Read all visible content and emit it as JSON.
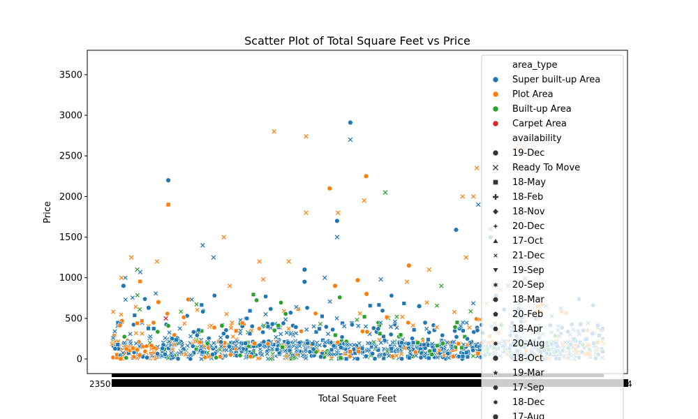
{
  "chart_data": {
    "type": "scatter",
    "title": "Scatter Plot of Total Square Feet vs Price",
    "xlabel": "Total Square Feet",
    "ylabel": "Price",
    "ylim": [
      -180,
      3800
    ],
    "y_ticks": [
      0,
      500,
      1000,
      1500,
      2000,
      2500,
      3000,
      3500
    ],
    "x_tick_labels_visible": [
      "2350",
      "4"
    ],
    "x_axis_note": "categorical x axis; thousands of overlapping tick labels",
    "grid": false,
    "legend_placement": "right (extends below plot)",
    "hue": {
      "title": "area_type",
      "categories": [
        {
          "name": "Super built-up  Area",
          "color": "#1f77b4"
        },
        {
          "name": "Plot  Area",
          "color": "#ff7f0e"
        },
        {
          "name": "Built-up  Area",
          "color": "#2ca02c"
        },
        {
          "name": "Carpet  Area",
          "color": "#d62728"
        }
      ]
    },
    "style": {
      "title": "availability",
      "categories": [
        {
          "name": "19-Dec",
          "marker": "circle"
        },
        {
          "name": "Ready To Move",
          "marker": "x"
        },
        {
          "name": "18-May",
          "marker": "square"
        },
        {
          "name": "18-Feb",
          "marker": "plus"
        },
        {
          "name": "18-Nov",
          "marker": "diamond"
        },
        {
          "name": "20-Dec",
          "marker": "star4"
        },
        {
          "name": "17-Oct",
          "marker": "triangle-up"
        },
        {
          "name": "21-Dec",
          "marker": "x-small"
        },
        {
          "name": "19-Sep",
          "marker": "triangle-down"
        },
        {
          "name": "20-Sep",
          "marker": "star6"
        },
        {
          "name": "18-Mar",
          "marker": "octagon"
        },
        {
          "name": "20-Feb",
          "marker": "pentagon"
        },
        {
          "name": "18-Apr",
          "marker": "hexagon"
        },
        {
          "name": "20-Aug",
          "marker": "star8"
        },
        {
          "name": "18-Oct",
          "marker": "circle"
        },
        {
          "name": "19-Mar",
          "marker": "star5"
        },
        {
          "name": "17-Sep",
          "marker": "hexagon"
        },
        {
          "name": "18-Dec",
          "marker": "star8"
        },
        {
          "name": "17-Aug",
          "marker": "circle"
        }
      ]
    },
    "points": [
      {
        "x": 115,
        "y": 2200,
        "area": "Super built-up  Area",
        "avail": "19-Dec"
      },
      {
        "x": 115,
        "y": 1900,
        "area": "Plot  Area",
        "avail": "18-May"
      },
      {
        "x": 330,
        "y": 2800,
        "area": "Plot  Area",
        "avail": "Ready To Move"
      },
      {
        "x": 395,
        "y": 2740,
        "area": "Plot  Area",
        "avail": "Ready To Move"
      },
      {
        "x": 485,
        "y": 2910,
        "area": "Super built-up  Area",
        "avail": "19-Dec"
      },
      {
        "x": 485,
        "y": 2700,
        "area": "Super built-up  Area",
        "avail": "Ready To Move"
      },
      {
        "x": 443,
        "y": 2100,
        "area": "Plot  Area",
        "avail": "19-Dec"
      },
      {
        "x": 517,
        "y": 2250,
        "area": "Plot  Area",
        "avail": "19-Dec"
      },
      {
        "x": 513,
        "y": 1950,
        "area": "Plot  Area",
        "avail": "Ready To Move"
      },
      {
        "x": 556,
        "y": 2050,
        "area": "Built-up  Area",
        "avail": "Ready To Move"
      },
      {
        "x": 395,
        "y": 1800,
        "area": "Plot  Area",
        "avail": "Ready To Move"
      },
      {
        "x": 460,
        "y": 1800,
        "area": "Plot  Area",
        "avail": "Ready To Move"
      },
      {
        "x": 458,
        "y": 1700,
        "area": "Super built-up  Area",
        "avail": "19-Dec"
      },
      {
        "x": 458,
        "y": 1500,
        "area": "Super built-up  Area",
        "avail": "Ready To Move"
      },
      {
        "x": 228,
        "y": 1500,
        "area": "Plot  Area",
        "avail": "Ready To Move"
      },
      {
        "x": 185,
        "y": 1400,
        "area": "Super built-up  Area",
        "avail": "Ready To Move"
      },
      {
        "x": 207,
        "y": 1250,
        "area": "Super built-up  Area",
        "avail": "Ready To Move"
      },
      {
        "x": 40,
        "y": 1250,
        "area": "Plot  Area",
        "avail": "Ready To Move"
      },
      {
        "x": 92,
        "y": 1200,
        "area": "Plot  Area",
        "avail": "Ready To Move"
      },
      {
        "x": 300,
        "y": 1200,
        "area": "Plot  Area",
        "avail": "Ready To Move"
      },
      {
        "x": 360,
        "y": 1200,
        "area": "Plot  Area",
        "avail": "Ready To Move"
      },
      {
        "x": 392,
        "y": 1100,
        "area": "Super built-up  Area",
        "avail": "19-Dec"
      },
      {
        "x": 392,
        "y": 950,
        "area": "Super built-up  Area",
        "avail": "19-Dec"
      },
      {
        "x": 604,
        "y": 1150,
        "area": "Plot  Area",
        "avail": "19-Dec"
      },
      {
        "x": 645,
        "y": 1100,
        "area": "Plot  Area",
        "avail": "Ready To Move"
      },
      {
        "x": 700,
        "y": 1590,
        "area": "Super built-up  Area",
        "avail": "19-Dec"
      },
      {
        "x": 770,
        "y": 1500,
        "area": "Super built-up  Area",
        "avail": "19-Dec"
      },
      {
        "x": 742,
        "y": 2350,
        "area": "Plot  Area",
        "avail": "Ready To Move"
      },
      {
        "x": 713,
        "y": 2000,
        "area": "Plot  Area",
        "avail": "Ready To Move"
      },
      {
        "x": 735,
        "y": 2000,
        "area": "Plot  Area",
        "avail": "Ready To Move"
      },
      {
        "x": 822,
        "y": 2600,
        "area": "Plot  Area",
        "avail": "Ready To Move"
      },
      {
        "x": 838,
        "y": 2600,
        "area": "Plot  Area",
        "avail": "Ready To Move"
      },
      {
        "x": 833,
        "y": 3600,
        "area": "Plot  Area",
        "avail": "Ready To Move"
      },
      {
        "x": 832,
        "y": 1830,
        "area": "Plot  Area",
        "avail": "Ready To Move"
      },
      {
        "x": 625,
        "y": 650,
        "area": "Super built-up  Area",
        "avail": "19-Dec"
      },
      {
        "x": 75,
        "y": 630,
        "area": "Super built-up  Area",
        "avail": "19-Dec"
      },
      {
        "x": 500,
        "y": 970,
        "area": "Plot  Area",
        "avail": "19-Dec"
      },
      {
        "x": 518,
        "y": 800,
        "area": "Plot  Area",
        "avail": "19-Dec"
      },
      {
        "x": 454,
        "y": 900,
        "area": "Plot  Area",
        "avail": "19-Dec"
      },
      {
        "x": 547,
        "y": 980,
        "area": "Super built-up  Area",
        "avail": "Ready To Move"
      },
      {
        "x": 24,
        "y": 900,
        "area": "Super built-up  Area",
        "avail": "19-Dec"
      },
      {
        "x": 600,
        "y": 950,
        "area": "Plot  Area",
        "avail": "Ready To Move"
      },
      {
        "x": 20,
        "y": 1000,
        "area": "Plot  Area",
        "avail": "Ready To Move"
      },
      {
        "x": 52,
        "y": 1100,
        "area": "Built-up  Area",
        "avail": "Ready To Move"
      },
      {
        "x": 58,
        "y": 1070,
        "area": "Super built-up  Area",
        "avail": "Ready To Move"
      },
      {
        "x": 240,
        "y": 900,
        "area": "Plot  Area",
        "avail": "Ready To Move"
      },
      {
        "x": 308,
        "y": 980,
        "area": "Plot  Area",
        "avail": "Ready To Move"
      },
      {
        "x": 433,
        "y": 1000,
        "area": "Super built-up  Area",
        "avail": "Ready To Move"
      },
      {
        "x": 840,
        "y": 990,
        "area": "Super built-up  Area",
        "avail": "Ready To Move"
      },
      {
        "x": 806,
        "y": 900,
        "area": "Super built-up  Area",
        "avail": "Ready To Move"
      },
      {
        "x": 770,
        "y": 1600,
        "area": "Super built-up  Area",
        "avail": "Ready To Move"
      },
      {
        "x": 745,
        "y": 1900,
        "area": "Super built-up  Area",
        "avail": "Ready To Move"
      },
      {
        "x": 720,
        "y": 1250,
        "area": "Plot  Area",
        "avail": "Ready To Move"
      },
      {
        "x": 790,
        "y": 850,
        "area": "Plot  Area",
        "avail": "Ready To Move"
      },
      {
        "x": 670,
        "y": 900,
        "area": "Built-up  Area",
        "avail": "Ready To Move"
      },
      {
        "x": 282,
        "y": 30,
        "area": "Plot  Area",
        "avail": "19-Dec"
      },
      {
        "x": 95,
        "y": 700,
        "area": "Plot  Area",
        "avail": "19-Dec"
      },
      {
        "x": 110,
        "y": 500,
        "area": "Carpet  Area",
        "avail": "Ready To Move"
      }
    ]
  }
}
